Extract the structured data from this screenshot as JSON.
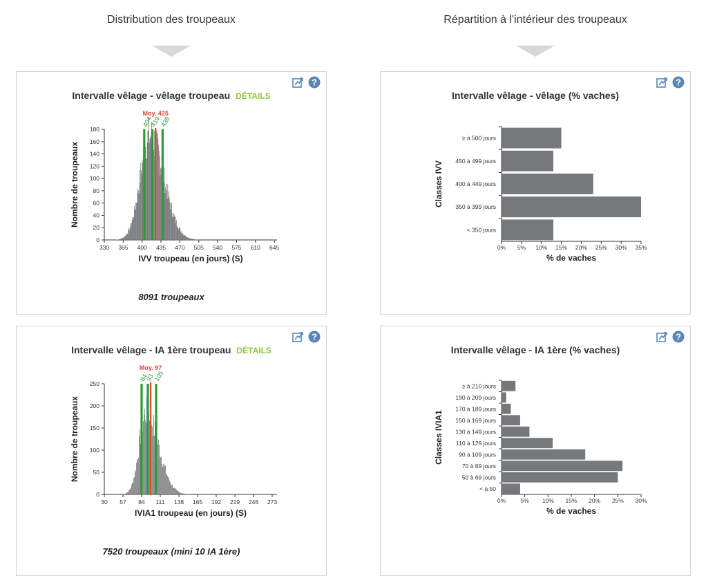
{
  "columns": {
    "left_title": "Distribution des troupeaux",
    "right_title": "Répartition à l'intérieur des troupeaux"
  },
  "colors": {
    "bar": "#77787b",
    "mean_line": "#e8433a",
    "quartile_line": "#2e9a33",
    "details": "#8dc63f",
    "icon_blue": "#5b86b8"
  },
  "icons": [
    "export-chart-icon",
    "help-icon"
  ],
  "panels": {
    "ivv_hist": {
      "title": "Intervalle vêlage - vêlage troupeau",
      "details_label": "DÉTAILS",
      "footer": "8091 troupeaux"
    },
    "ivv_classes": {
      "title": "Intervalle vêlage - vêlage (% vaches)"
    },
    "ivia1_hist": {
      "title": "Intervalle vêlage - IA 1ère troupeau",
      "details_label": "DÉTAILS",
      "footer": "7520 troupeaux (mini 10 IA 1ère)"
    },
    "ivia1_classes": {
      "title": "Intervalle vêlage - IA 1ère (% vaches)"
    }
  },
  "chart_data": [
    {
      "id": "ivv_hist",
      "type": "bar",
      "xlabel": "IVV troupeau (en jours) (S)",
      "ylabel": "Nombre de troupeaux",
      "xlim": [
        330,
        650
      ],
      "ylim": [
        0,
        180
      ],
      "xticks": [
        330,
        365,
        400,
        435,
        470,
        505,
        540,
        575,
        610,
        645
      ],
      "yticks": [
        0,
        20,
        40,
        60,
        80,
        100,
        120,
        140,
        160,
        180
      ],
      "mean": {
        "label": "Moy. 425",
        "value": 425
      },
      "quartiles": [
        {
          "label": "404",
          "value": 404
        },
        {
          "label": "419",
          "value": 419
        },
        {
          "label": "438",
          "value": 438
        }
      ],
      "distribution": {
        "peak_x": 414,
        "peak_y": 170,
        "sd_left": 18,
        "sd_right": 26,
        "x_min": 352,
        "x_max": 560,
        "bin_width": 1
      }
    },
    {
      "id": "ivv_classes",
      "type": "bar",
      "orientation": "horizontal",
      "xlabel": "% de vaches",
      "ylabel": "Classes IVV",
      "xlim": [
        0,
        35
      ],
      "xticks": [
        "0%",
        "5%",
        "10%",
        "15%",
        "20%",
        "25%",
        "30%",
        "35%"
      ],
      "categories": [
        "≥ à 500 jours",
        "450 à 499 jours",
        "400 à 449 jours",
        "350 à 399 jours",
        "< 350 jours"
      ],
      "values": [
        15,
        13,
        23,
        35,
        13
      ]
    },
    {
      "id": "ivia1_hist",
      "type": "bar",
      "xlabel": "IVIA1 troupeau (en jours) (S)",
      "ylabel": "Nombre de troupeaux",
      "xlim": [
        30,
        280
      ],
      "ylim": [
        0,
        250
      ],
      "xticks": [
        30,
        57,
        84,
        111,
        138,
        165,
        192,
        219,
        246,
        273
      ],
      "yticks": [
        0,
        50,
        100,
        150,
        200,
        250
      ],
      "mean": {
        "label": "Moy. 97",
        "value": 97
      },
      "quartiles": [
        {
          "label": "84",
          "value": 84
        },
        {
          "label": "93",
          "value": 93
        },
        {
          "label": "105",
          "value": 105
        }
      ],
      "distribution": {
        "peak_x": 90,
        "peak_y": 185,
        "sd_left": 10,
        "sd_right": 18,
        "x_min": 58,
        "x_max": 180,
        "bin_width": 1
      }
    },
    {
      "id": "ivia1_classes",
      "type": "bar",
      "orientation": "horizontal",
      "xlabel": "% de vaches",
      "ylabel": "Classes IVIA1",
      "xlim": [
        0,
        30
      ],
      "xticks": [
        "0%",
        "5%",
        "10%",
        "15%",
        "20%",
        "25%",
        "30%"
      ],
      "categories": [
        "≥ à 210 jours",
        "190 à 209 jours",
        "170 à 189 jours",
        "150 à 169 jours",
        "130 à 149 jours",
        "110 à 129 jours",
        "90 à 109 jours",
        "70 à 89 jours",
        "50 à 69 jours",
        "< à 50"
      ],
      "values": [
        3,
        1,
        2,
        4,
        6,
        11,
        18,
        26,
        25,
        4
      ]
    }
  ]
}
